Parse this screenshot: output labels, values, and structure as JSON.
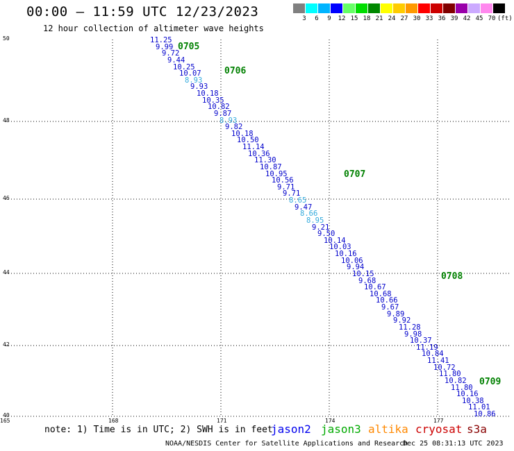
{
  "header": {
    "title": "00:00 – 11:59 UTC 12/23/2023",
    "subtitle": "12 hour collection of altimeter wave heights"
  },
  "legend": {
    "colors": [
      "#808080",
      "#00ffff",
      "#00b4ff",
      "#0000ff",
      "#66ff66",
      "#00dd00",
      "#008800",
      "#ffff00",
      "#ffcc00",
      "#ff9900",
      "#ff0000",
      "#cc0000",
      "#800000",
      "#9900aa",
      "#ccaaff",
      "#ff88ee",
      "#000000"
    ],
    "labels": [
      "3",
      "6",
      "9",
      "12",
      "15",
      "18",
      "21",
      "24",
      "27",
      "30",
      "33",
      "36",
      "39",
      "42",
      "45",
      "70",
      "(ft)"
    ]
  },
  "map": {
    "y_ticks": [
      "50",
      "48",
      "46",
      "44",
      "42",
      "40"
    ],
    "x_ticks": [
      "165",
      "168",
      "171",
      "174",
      "177"
    ],
    "lat_range": [
      40,
      50
    ],
    "lon_range": [
      165,
      180
    ]
  },
  "track": {
    "times": [
      {
        "label": "0705",
        "lat": 49.8,
        "lon": 169.8
      },
      {
        "label": "0706",
        "lat": 49.15,
        "lon": 171.1
      },
      {
        "label": "0707",
        "lat": 46.4,
        "lon": 174.4
      },
      {
        "label": "0708",
        "lat": 43.7,
        "lon": 177.1
      },
      {
        "label": "0709",
        "lat": 40.9,
        "lon": 180.0
      }
    ],
    "points": [
      {
        "v": "11.25",
        "c": "#0000cc"
      },
      {
        "v": "9.99",
        "c": "#0000cc"
      },
      {
        "v": "9.72",
        "c": "#0000cc"
      },
      {
        "v": "9.44",
        "c": "#0000cc"
      },
      {
        "v": "10.25",
        "c": "#0000cc"
      },
      {
        "v": "10.07",
        "c": "#0000cc"
      },
      {
        "v": "8.93",
        "c": "#33aadd"
      },
      {
        "v": "9.93",
        "c": "#0000cc"
      },
      {
        "v": "10.18",
        "c": "#0000cc"
      },
      {
        "v": "10.35",
        "c": "#0000cc"
      },
      {
        "v": "10.82",
        "c": "#0000cc"
      },
      {
        "v": "9.87",
        "c": "#0000cc"
      },
      {
        "v": "8.93",
        "c": "#33aadd"
      },
      {
        "v": "9.82",
        "c": "#0000cc"
      },
      {
        "v": "10.18",
        "c": "#0000cc"
      },
      {
        "v": "10.50",
        "c": "#0000cc"
      },
      {
        "v": "11.14",
        "c": "#0000cc"
      },
      {
        "v": "10.36",
        "c": "#0000cc"
      },
      {
        "v": "11.30",
        "c": "#0000cc"
      },
      {
        "v": "10.87",
        "c": "#0000cc"
      },
      {
        "v": "10.95",
        "c": "#0000cc"
      },
      {
        "v": "10.56",
        "c": "#0000cc"
      },
      {
        "v": "9.71",
        "c": "#0000cc"
      },
      {
        "v": "9.71",
        "c": "#0000cc"
      },
      {
        "v": "8.65",
        "c": "#33aadd"
      },
      {
        "v": "9.47",
        "c": "#0000cc"
      },
      {
        "v": "8.66",
        "c": "#33aadd"
      },
      {
        "v": "8.95",
        "c": "#33aadd"
      },
      {
        "v": "9.21",
        "c": "#0000cc"
      },
      {
        "v": "9.50",
        "c": "#0000cc"
      },
      {
        "v": "10.14",
        "c": "#0000cc"
      },
      {
        "v": "10.03",
        "c": "#0000cc"
      },
      {
        "v": "10.16",
        "c": "#0000cc"
      },
      {
        "v": "10.06",
        "c": "#0000cc"
      },
      {
        "v": "9.94",
        "c": "#0000cc"
      },
      {
        "v": "10.15",
        "c": "#0000cc"
      },
      {
        "v": "9.68",
        "c": "#0000cc"
      },
      {
        "v": "10.67",
        "c": "#0000cc"
      },
      {
        "v": "10.68",
        "c": "#0000cc"
      },
      {
        "v": "10.66",
        "c": "#0000cc"
      },
      {
        "v": "9.67",
        "c": "#0000cc"
      },
      {
        "v": "9.89",
        "c": "#0000cc"
      },
      {
        "v": "9.92",
        "c": "#0000cc"
      },
      {
        "v": "11.28",
        "c": "#0000cc"
      },
      {
        "v": "9.98",
        "c": "#0000cc"
      },
      {
        "v": "10.37",
        "c": "#0000cc"
      },
      {
        "v": "11.19",
        "c": "#0000cc"
      },
      {
        "v": "10.84",
        "c": "#0000cc"
      },
      {
        "v": "11.41",
        "c": "#0000cc"
      },
      {
        "v": "10.72",
        "c": "#0000cc"
      },
      {
        "v": "11.80",
        "c": "#0000cc"
      },
      {
        "v": "10.82",
        "c": "#0000cc"
      },
      {
        "v": "11.80",
        "c": "#0000cc"
      },
      {
        "v": "10.16",
        "c": "#0000cc"
      },
      {
        "v": "10.38",
        "c": "#0000cc"
      },
      {
        "v": "11.01",
        "c": "#0000cc"
      },
      {
        "v": "10.86",
        "c": "#0000cc"
      }
    ]
  },
  "footer": {
    "note": "note: 1) Time is in UTC; 2) SWH is in feet",
    "satellites": [
      {
        "name": "jason2",
        "color": "#0000ee"
      },
      {
        "name": "jason3",
        "color": "#00aa00"
      },
      {
        "name": "altika",
        "color": "#ff8800"
      },
      {
        "name": "cryosat",
        "color": "#cc0000"
      },
      {
        "name": "s3a",
        "color": "#880000"
      }
    ],
    "credit": "NOAA/NESDIS Center for Satellite Applications and Research",
    "timestamp": "Dec 25 08:31:13 UTC 2023"
  }
}
